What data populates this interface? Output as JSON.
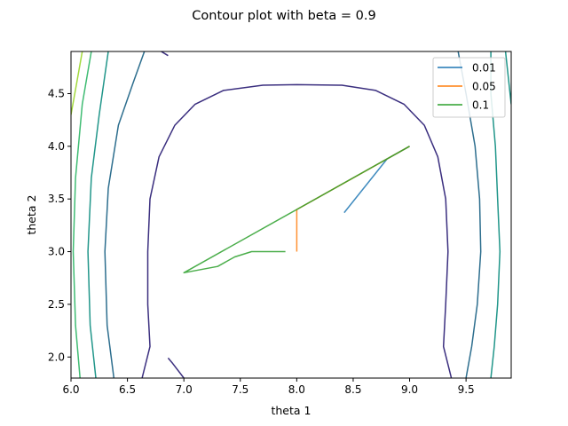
{
  "chart_data": {
    "type": "line",
    "title": "Contour plot with beta = 0.9",
    "xlabel": "theta 1",
    "ylabel": "theta 2",
    "xlim": [
      6.0,
      9.9
    ],
    "ylim": [
      1.8,
      4.9
    ],
    "xticks": [
      "6.0",
      "6.5",
      "7.0",
      "7.5",
      "8.0",
      "8.5",
      "9.0",
      "9.5"
    ],
    "yticks": [
      "2.0",
      "2.5",
      "3.0",
      "3.5",
      "4.0",
      "4.5"
    ],
    "legend_position": "top-right",
    "grid": false,
    "contours": [
      {
        "color": "#3b2f7f",
        "points": [
          [
            6.63,
            1.8
          ],
          [
            6.7,
            2.1
          ],
          [
            6.68,
            2.5
          ],
          [
            6.68,
            3.0
          ],
          [
            6.7,
            3.5
          ],
          [
            6.78,
            3.9
          ],
          [
            6.92,
            4.2
          ],
          [
            7.1,
            4.4
          ],
          [
            7.35,
            4.53
          ],
          [
            7.7,
            4.58
          ],
          [
            8.0,
            4.585
          ],
          [
            8.4,
            4.58
          ],
          [
            8.7,
            4.53
          ],
          [
            8.95,
            4.4
          ],
          [
            9.13,
            4.2
          ],
          [
            9.25,
            3.9
          ],
          [
            9.32,
            3.5
          ],
          [
            9.34,
            3.0
          ],
          [
            9.32,
            2.5
          ],
          [
            9.3,
            2.1
          ],
          [
            9.37,
            1.8
          ]
        ]
      },
      {
        "color": "#3b2f7f",
        "points": [
          [
            7.0,
            1.8
          ],
          [
            6.9,
            1.94
          ],
          [
            6.86,
            1.99
          ]
        ]
      },
      {
        "color": "#3b2f7f",
        "points": [
          [
            6.8,
            4.9
          ],
          [
            6.86,
            4.86
          ]
        ]
      },
      {
        "color": "#2d6e8e",
        "points": [
          [
            6.38,
            1.8
          ],
          [
            6.32,
            2.3
          ],
          [
            6.3,
            3.0
          ],
          [
            6.33,
            3.6
          ],
          [
            6.42,
            4.2
          ],
          [
            6.55,
            4.6
          ],
          [
            6.65,
            4.9
          ]
        ]
      },
      {
        "color": "#2d6e8e",
        "points": [
          [
            9.43,
            4.9
          ],
          [
            9.5,
            4.5
          ],
          [
            9.58,
            4.0
          ],
          [
            9.62,
            3.5
          ],
          [
            9.63,
            3.0
          ],
          [
            9.6,
            2.5
          ],
          [
            9.55,
            2.1
          ],
          [
            9.5,
            1.8
          ]
        ]
      },
      {
        "color": "#21968a",
        "points": [
          [
            6.22,
            1.8
          ],
          [
            6.17,
            2.3
          ],
          [
            6.15,
            3.0
          ],
          [
            6.18,
            3.7
          ],
          [
            6.25,
            4.3
          ],
          [
            6.33,
            4.9
          ]
        ]
      },
      {
        "color": "#21968a",
        "points": [
          [
            9.72,
            4.9
          ],
          [
            9.72,
            4.5
          ],
          [
            9.76,
            4.0
          ],
          [
            9.78,
            3.5
          ],
          [
            9.8,
            3.0
          ],
          [
            9.78,
            2.5
          ],
          [
            9.75,
            2.1
          ],
          [
            9.72,
            1.8
          ]
        ]
      },
      {
        "color": "#3fbc73",
        "points": [
          [
            6.08,
            1.8
          ],
          [
            6.04,
            2.3
          ],
          [
            6.02,
            3.0
          ],
          [
            6.04,
            3.7
          ],
          [
            6.1,
            4.4
          ],
          [
            6.18,
            4.9
          ]
        ]
      },
      {
        "color": "#21968a",
        "points": [
          [
            9.85,
            4.9
          ],
          [
            9.9,
            4.4
          ]
        ]
      },
      {
        "color": "#a3d93d",
        "points": [
          [
            6.0,
            4.3
          ],
          [
            6.05,
            4.6
          ],
          [
            6.1,
            4.9
          ]
        ]
      }
    ],
    "series": [
      {
        "name": "0.01",
        "color": "#1f77b4",
        "points": [
          [
            9.0,
            4.0
          ],
          [
            8.8,
            3.88
          ],
          [
            8.42,
            3.37
          ]
        ]
      },
      {
        "name": "0.05",
        "color": "#ff7f0e",
        "points": [
          [
            9.0,
            4.0
          ],
          [
            8.0,
            3.4
          ],
          [
            8.0,
            3.0
          ]
        ]
      },
      {
        "name": "0.1",
        "color": "#2ca02c",
        "points": [
          [
            9.0,
            4.0
          ],
          [
            7.0,
            2.8
          ],
          [
            7.3,
            2.86
          ],
          [
            7.45,
            2.95
          ],
          [
            7.6,
            3.0
          ],
          [
            7.9,
            3.0
          ]
        ]
      }
    ]
  }
}
